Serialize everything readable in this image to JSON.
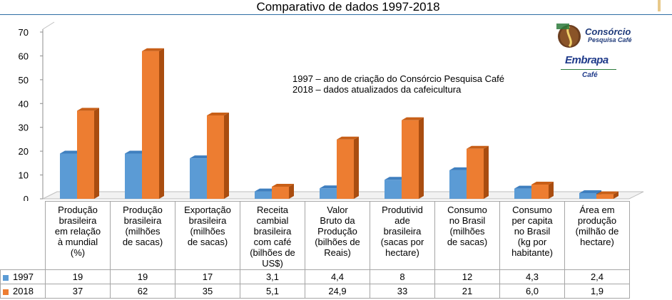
{
  "title": "Comparativo de dados 1997-2018",
  "annotation": {
    "line1": "1997 – ano de criação do Consórcio Pesquisa Café",
    "line2": "2018 – dados atualizados da cafeicultura"
  },
  "logos": {
    "consorcio_name": "Consórcio",
    "consorcio_sub": "Pesquisa Café",
    "embrapa_name": "Embrapa",
    "embrapa_sub": "Café"
  },
  "colors": {
    "series_1997": "#5b9bd5",
    "series_2018": "#ed7d31"
  },
  "chart_data": {
    "type": "bar",
    "title": "Comparativo de dados 1997-2018",
    "ylim": [
      0,
      70
    ],
    "yticks": [
      0,
      10,
      20,
      30,
      40,
      50,
      60,
      70
    ],
    "grid": false,
    "legend": "table-left",
    "categories": [
      "Produção brasileira em relação à mundial (%)",
      "Produção brasileira (milhões de sacas)",
      "Exportação brasileira (milhões de sacas)",
      "Receita cambial brasileira com café (bilhões de US$)",
      "Valor Bruto da Produção (bilhões de Reais)",
      "Produtividade brasileira (sacas por hectare)",
      "Consumo no Brasil (milhões de sacas)",
      "Consumo per capita no Brasil (kg por habitante)",
      "Área em produção (milhão de hectare)"
    ],
    "category_lines": [
      [
        "Produção",
        "brasileira",
        "em relação",
        "à mundial",
        "(%)"
      ],
      [
        "Produção",
        "brasileira",
        "(milhões",
        "de sacas)"
      ],
      [
        "Exportação",
        "brasileira",
        "(milhões",
        "de sacas)"
      ],
      [
        "Receita",
        "cambial",
        "brasileira",
        "com café",
        "(bilhões de",
        "US$)"
      ],
      [
        "Valor",
        "Bruto da",
        "Produção",
        "(bilhões de",
        "Reais)"
      ],
      [
        "Produtivid",
        "ade",
        "brasileira",
        "(sacas por",
        "hectare)"
      ],
      [
        "Consumo",
        "no Brasil",
        "(milhões",
        "de sacas)"
      ],
      [
        "Consumo",
        "per capita",
        "no Brasil",
        "(kg por",
        "habitante)"
      ],
      [
        "Área em",
        "produção",
        "(milhão de",
        "hectare)"
      ]
    ],
    "series": [
      {
        "name": "1997",
        "values": [
          19,
          19,
          17,
          3.1,
          4.4,
          8,
          12,
          4.3,
          2.4
        ],
        "labels": [
          "19",
          "19",
          "17",
          "3,1",
          "4,4",
          "8",
          "12",
          "4,3",
          "2,4"
        ]
      },
      {
        "name": "2018",
        "values": [
          37,
          62,
          35,
          5.1,
          24.9,
          33,
          21,
          6.0,
          1.9
        ],
        "labels": [
          "37",
          "62",
          "35",
          "5,1",
          "24,9",
          "33",
          "21",
          "6,0",
          "1,9"
        ]
      }
    ]
  }
}
